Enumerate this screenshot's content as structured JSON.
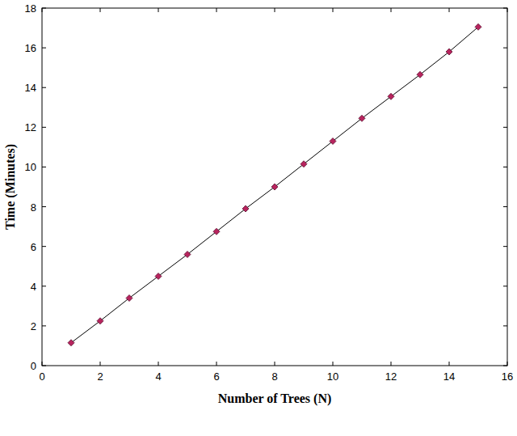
{
  "chart_data": {
    "type": "line",
    "x_label": "Number of Trees (N)",
    "y_label": "Time (Minutes)",
    "x": [
      1,
      2,
      3,
      4,
      5,
      6,
      7,
      8,
      9,
      10,
      11,
      12,
      13,
      14,
      15
    ],
    "values": [
      1.15,
      2.25,
      3.4,
      4.5,
      5.6,
      6.75,
      7.9,
      9.0,
      10.15,
      11.3,
      12.45,
      13.55,
      14.65,
      15.8,
      17.05
    ],
    "color": "#b8245e",
    "marker": "diamond",
    "line_style": "solid",
    "xlim": [
      0,
      16
    ],
    "xticks": [
      0,
      2,
      4,
      6,
      8,
      10,
      12,
      14,
      16
    ],
    "ylim": [
      0,
      18
    ],
    "yticks": [
      0,
      2,
      4,
      6,
      8,
      10,
      12,
      14,
      16,
      18
    ],
    "grid": false
  }
}
